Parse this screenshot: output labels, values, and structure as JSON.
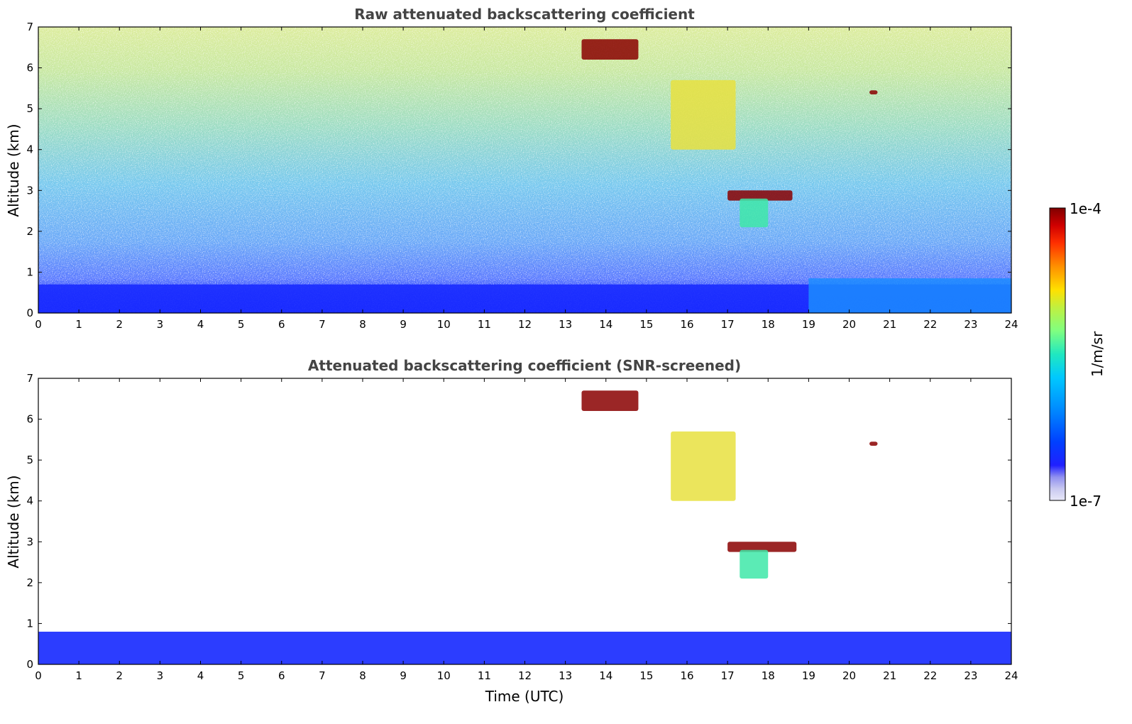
{
  "chart_data": [
    {
      "type": "heatmap",
      "title": "Raw attenuated backscattering coefficient",
      "xlabel": "",
      "ylabel": "Altitude (km)",
      "xlim": [
        0,
        24
      ],
      "ylim": [
        0,
        7
      ],
      "x_ticks": [
        "0",
        "1",
        "2",
        "3",
        "4",
        "5",
        "6",
        "7",
        "8",
        "9",
        "10",
        "11",
        "12",
        "13",
        "14",
        "15",
        "16",
        "17",
        "18",
        "19",
        "20",
        "21",
        "22",
        "23",
        "24"
      ],
      "y_ticks": [
        "0",
        "1",
        "2",
        "3",
        "4",
        "5",
        "6",
        "7"
      ],
      "background": "noisy signal increasing with altitude (blue near surface to green/yellow aloft)",
      "features": [
        {
          "name": "boundary layer",
          "x_range": [
            0,
            24
          ],
          "y_range": [
            0,
            0.7
          ],
          "level": "low"
        },
        {
          "name": "elevated aerosol layer",
          "x_range": [
            19,
            24
          ],
          "y_range": [
            0,
            0.85
          ],
          "level": "low-mid"
        },
        {
          "name": "high cloud",
          "x_range": [
            13.4,
            14.8
          ],
          "y_range": [
            6.2,
            6.7
          ],
          "level": "high"
        },
        {
          "name": "mid-level cloud",
          "x_range": [
            15.6,
            17.2
          ],
          "y_range": [
            4.0,
            5.7
          ],
          "level": "mid-high"
        },
        {
          "name": "cloud top",
          "x_range": [
            17.0,
            18.6
          ],
          "y_range": [
            2.75,
            3.0
          ],
          "level": "high"
        },
        {
          "name": "precipitation/virga",
          "x_range": [
            17.3,
            18.0
          ],
          "y_range": [
            2.1,
            2.8
          ],
          "level": "mid"
        },
        {
          "name": "small cloud",
          "x_range": [
            20.5,
            20.7
          ],
          "y_range": [
            5.35,
            5.45
          ],
          "level": "high"
        }
      ]
    },
    {
      "type": "heatmap",
      "title": "Attenuated backscattering coefficient (SNR-screened)",
      "xlabel": "Time (UTC)",
      "ylabel": "Altitude (km)",
      "xlim": [
        0,
        24
      ],
      "ylim": [
        0,
        7
      ],
      "x_ticks": [
        "0",
        "1",
        "2",
        "3",
        "4",
        "5",
        "6",
        "7",
        "8",
        "9",
        "10",
        "11",
        "12",
        "13",
        "14",
        "15",
        "16",
        "17",
        "18",
        "19",
        "20",
        "21",
        "22",
        "23",
        "24"
      ],
      "y_ticks": [
        "0",
        "1",
        "2",
        "3",
        "4",
        "5",
        "6",
        "7"
      ],
      "background": "screened out (white)",
      "features": [
        {
          "name": "boundary layer",
          "x_range": [
            0,
            24
          ],
          "y_range": [
            0,
            0.8
          ],
          "level": "low"
        },
        {
          "name": "high cloud",
          "x_range": [
            13.4,
            14.8
          ],
          "y_range": [
            6.2,
            6.7
          ],
          "level": "high"
        },
        {
          "name": "mid-level cloud",
          "x_range": [
            15.6,
            17.2
          ],
          "y_range": [
            4.0,
            5.7
          ],
          "level": "mid-high"
        },
        {
          "name": "cloud top",
          "x_range": [
            17.0,
            18.7
          ],
          "y_range": [
            2.75,
            3.0
          ],
          "level": "high"
        },
        {
          "name": "precipitation/virga",
          "x_range": [
            17.3,
            18.0
          ],
          "y_range": [
            2.1,
            2.8
          ],
          "level": "mid"
        },
        {
          "name": "small cloud",
          "x_range": [
            20.5,
            20.7
          ],
          "y_range": [
            5.35,
            5.45
          ],
          "level": "high"
        }
      ]
    }
  ],
  "colorbar": {
    "label": "1/m/sr",
    "max_label": "1e-4",
    "min_label": "1e-7",
    "colors": [
      "#e8e8f8",
      "#c8c8f0",
      "#9090f0",
      "#2020ff",
      "#0040ff",
      "#0090ff",
      "#00c8ff",
      "#20e8c0",
      "#80ff80",
      "#c0f040",
      "#ffe000",
      "#ff9000",
      "#ff3000",
      "#d00000",
      "#800000"
    ]
  }
}
